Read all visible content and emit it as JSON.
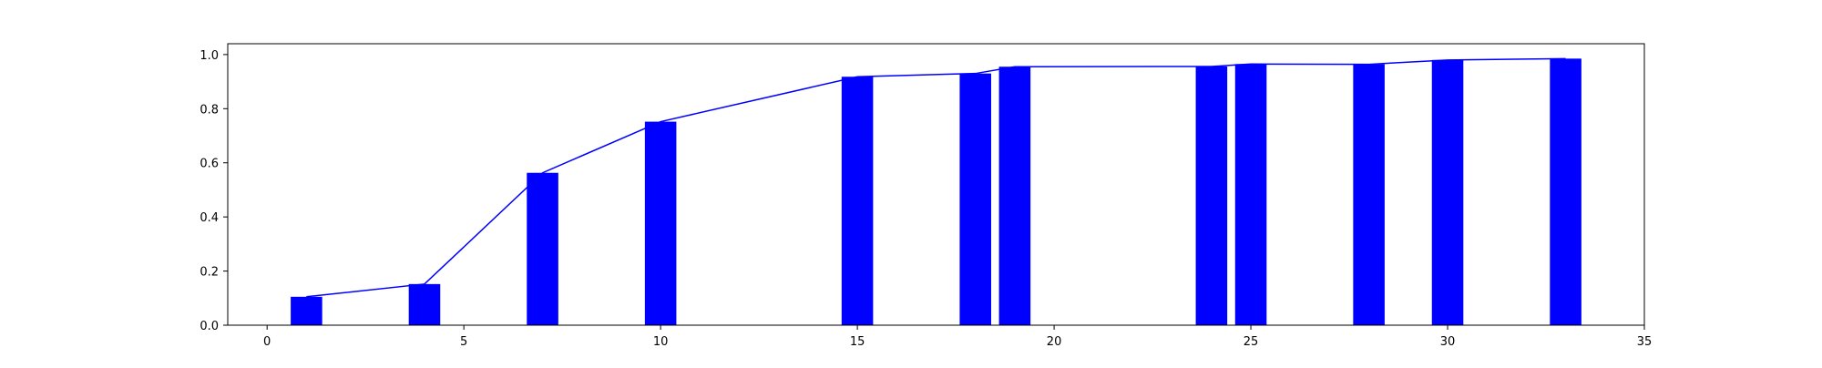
{
  "chart_data": {
    "type": "bar",
    "title": "",
    "xlabel": "",
    "ylabel": "",
    "xlim": [
      -1,
      35
    ],
    "ylim": [
      0,
      1.04
    ],
    "grid": false,
    "legend": "none",
    "x": [
      1,
      4,
      7,
      10,
      15,
      18,
      19,
      24,
      25,
      28,
      30,
      33
    ],
    "bar_width": 0.8,
    "series": [
      {
        "type": "bar",
        "values": [
          0.105,
          0.152,
          0.563,
          0.752,
          0.918,
          0.93,
          0.955,
          0.956,
          0.965,
          0.964,
          0.98,
          0.985
        ]
      },
      {
        "type": "line",
        "values": [
          0.105,
          0.152,
          0.563,
          0.752,
          0.918,
          0.93,
          0.955,
          0.956,
          0.965,
          0.964,
          0.98,
          0.985
        ]
      }
    ],
    "x_ticks": [
      0,
      5,
      10,
      15,
      20,
      25,
      30,
      35
    ],
    "y_ticks": [
      0.0,
      0.2,
      0.4,
      0.6,
      0.8,
      1.0
    ],
    "x_tick_labels": [
      "0",
      "5",
      "10",
      "15",
      "20",
      "25",
      "30",
      "35"
    ],
    "y_tick_labels": [
      "0.0",
      "0.2",
      "0.4",
      "0.6",
      "0.8",
      "1.0"
    ],
    "colors": {
      "bar": "#0000ff",
      "line": "#0000ff",
      "axes": "#000000"
    }
  }
}
